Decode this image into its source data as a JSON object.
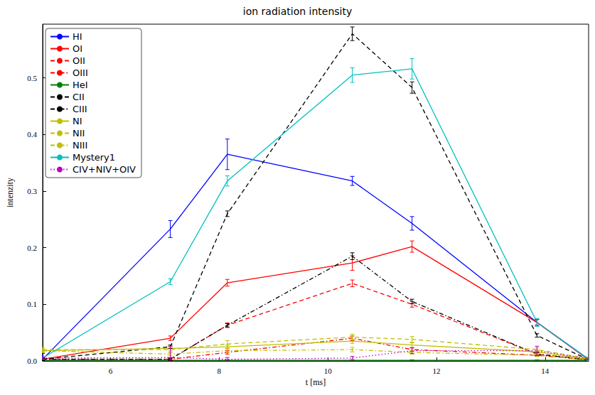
{
  "chart_data": {
    "type": "line",
    "title": "ion radiation intensity",
    "x_label": "t [ms]",
    "y_label": "intenzity",
    "x": [
      4.75,
      7.1,
      8.15,
      10.45,
      11.55,
      13.85,
      14.8
    ],
    "xlim": [
      4.75,
      14.8
    ],
    "xticks": [
      6,
      8,
      10,
      12,
      14
    ],
    "ylim": [
      0,
      0.595
    ],
    "yticks": [
      {
        "value": 0,
        "label": "0.0"
      },
      0.1,
      0.2,
      0.3,
      0.4,
      0.5
    ],
    "grid": false,
    "legend": "upper left",
    "series": [
      {
        "name": "HI",
        "color": "#0000ff",
        "line_style": "solid",
        "values": [
          0.003,
          0.233,
          0.365,
          0.318,
          0.243,
          0.068,
          0.003
        ],
        "errors": [
          0.01,
          0.015,
          0.027,
          0.008,
          0.012,
          0.005,
          0.002
        ]
      },
      {
        "name": "OI",
        "color": "#ff0000",
        "line_style": "solid",
        "values": [
          0.003,
          0.04,
          0.138,
          0.173,
          0.202,
          0.068,
          0.002
        ],
        "errors": [
          0.002,
          0.004,
          0.006,
          0.013,
          0.01,
          0.005,
          0.002
        ]
      },
      {
        "name": "OII",
        "color": "#ff0000",
        "line_style": "dashed",
        "values": [
          0.003,
          0.003,
          0.063,
          0.137,
          0.1,
          0.012,
          0.002
        ],
        "errors": [
          0.002,
          0.002,
          0.004,
          0.006,
          0.005,
          0.003,
          0.002
        ]
      },
      {
        "name": "OIII",
        "color": "#ff0000",
        "line_style": "dashdot",
        "values": [
          0.003,
          0.003,
          0.015,
          0.04,
          0.02,
          0.01,
          0.002
        ],
        "errors": [
          0.002,
          0.002,
          0.003,
          0.004,
          0.003,
          0.002,
          0.002
        ]
      },
      {
        "name": "HeI",
        "color": "#008000",
        "line_style": "solid",
        "values": [
          0.001,
          0.001,
          0.001,
          0.001,
          0.001,
          0.001,
          0.001
        ],
        "errors": [
          0.001,
          0.001,
          0.001,
          0.001,
          0.001,
          0.001,
          0.001
        ]
      },
      {
        "name": "CII",
        "color": "#000000",
        "line_style": "dashed",
        "values": [
          0.003,
          0.025,
          0.26,
          0.578,
          0.483,
          0.045,
          0.002
        ],
        "errors": [
          0.002,
          0.003,
          0.005,
          0.012,
          0.01,
          0.003,
          0.002
        ]
      },
      {
        "name": "CIII",
        "color": "#000000",
        "line_style": "dashdot",
        "values": [
          0.003,
          0.003,
          0.063,
          0.185,
          0.105,
          0.012,
          0.002
        ],
        "errors": [
          0.002,
          0.002,
          0.003,
          0.006,
          0.004,
          0.003,
          0.002
        ]
      },
      {
        "name": "NI",
        "color": "#bfbf00",
        "line_style": "solid",
        "values": [
          0.018,
          0.022,
          0.025,
          0.035,
          0.028,
          0.016,
          0.003
        ],
        "errors": [
          0.003,
          0.003,
          0.003,
          0.004,
          0.004,
          0.003,
          0.002
        ]
      },
      {
        "name": "NII",
        "color": "#bfbf00",
        "line_style": "dashed",
        "values": [
          0.02,
          0.02,
          0.03,
          0.042,
          0.038,
          0.02,
          0.004
        ],
        "errors": [
          0.004,
          0.004,
          0.006,
          0.005,
          0.005,
          0.003,
          0.002
        ]
      },
      {
        "name": "NIII",
        "color": "#bfbf00",
        "line_style": "dashdot",
        "values": [
          0.018,
          0.012,
          0.018,
          0.02,
          0.015,
          0.01,
          0.003
        ],
        "errors": [
          0.003,
          0.003,
          0.003,
          0.004,
          0.003,
          0.002,
          0.002
        ]
      },
      {
        "name": "Mystery1",
        "color": "#00bfbf",
        "line_style": "solid",
        "values": [
          0.005,
          0.14,
          0.318,
          0.505,
          0.516,
          0.068,
          0.003
        ],
        "errors": [
          0.002,
          0.005,
          0.009,
          0.013,
          0.018,
          0.007,
          0.002
        ]
      },
      {
        "name": "CIV+NIV+OIV",
        "color": "#bf00bf",
        "line_style": "dotted",
        "values": [
          0.005,
          0.006,
          0.003,
          0.005,
          0.018,
          0.018,
          0.004
        ],
        "errors": [
          0.002,
          0.02,
          0.003,
          0.003,
          0.005,
          0.008,
          0.002
        ]
      }
    ]
  }
}
